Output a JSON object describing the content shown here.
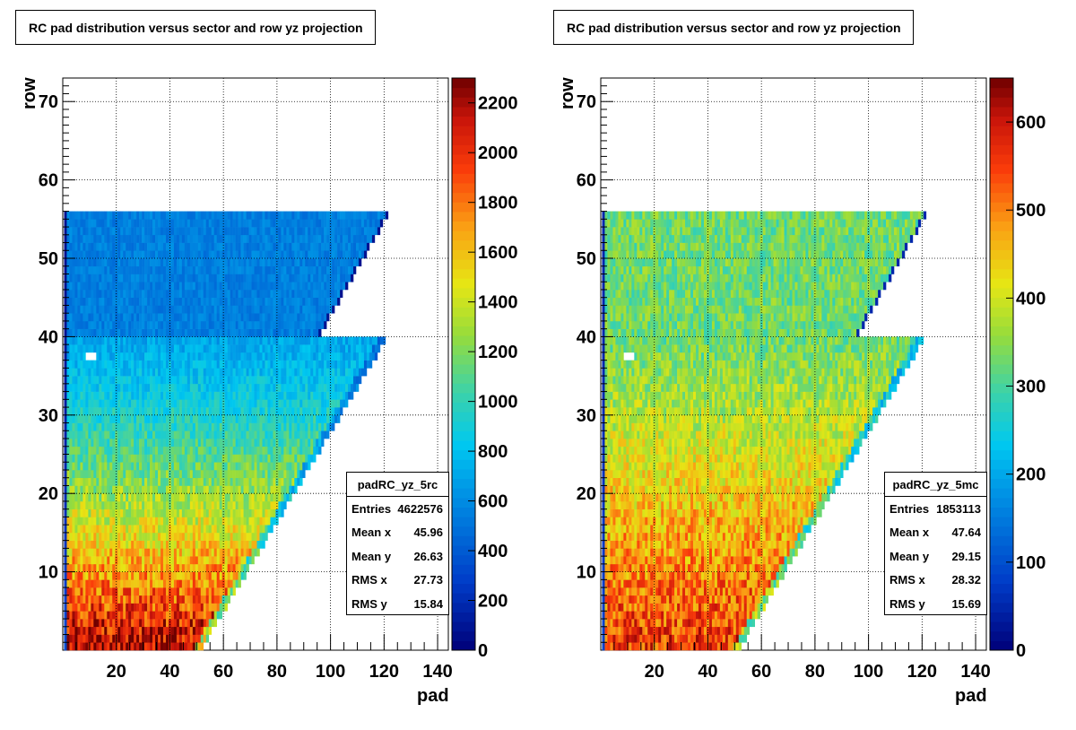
{
  "panels": [
    {
      "title": "RC pad distribution versus sector and row yz projection",
      "stats": {
        "name": "padRC_yz_5rc",
        "rows": [
          {
            "label": "Entries",
            "value": "4622576"
          },
          {
            "label": "Mean x",
            "value": "45.96"
          },
          {
            "label": "Mean y",
            "value": "26.63"
          },
          {
            "label": "RMS x",
            "value": "27.73"
          },
          {
            "label": "RMS y",
            "value": "15.84"
          }
        ]
      },
      "xlabel": "pad",
      "ylabel": "row",
      "zmax": 2300,
      "zticks": [
        "0",
        "200",
        "400",
        "600",
        "800",
        "1000",
        "1200",
        "1400",
        "1600",
        "1800",
        "2000",
        "2200"
      ]
    },
    {
      "title": "RC pad distribution versus sector and row yz projection",
      "stats": {
        "name": "padRC_yz_5mc",
        "rows": [
          {
            "label": "Entries",
            "value": "1853113"
          },
          {
            "label": "Mean x",
            "value": "47.64"
          },
          {
            "label": "Mean y",
            "value": "29.15"
          },
          {
            "label": "RMS x",
            "value": "28.32"
          },
          {
            "label": "RMS y",
            "value": "15.69"
          }
        ]
      },
      "xlabel": "pad",
      "ylabel": "row",
      "zmax": 650,
      "zticks": [
        "0",
        "100",
        "200",
        "300",
        "400",
        "500",
        "600"
      ]
    }
  ],
  "chart_data": [
    {
      "type": "heatmap",
      "title": "RC pad distribution versus sector and row yz projection",
      "xlabel": "pad",
      "ylabel": "row",
      "xlim": [
        0,
        144
      ],
      "ylim": [
        0,
        73
      ],
      "xticks": [
        "20",
        "40",
        "60",
        "80",
        "100",
        "120",
        "140"
      ],
      "yticks": [
        "10",
        "20",
        "30",
        "40",
        "50",
        "60",
        "70"
      ],
      "zlim": [
        0,
        2300
      ],
      "grid": true,
      "shape": {
        "inner_rows": [
          1,
          40
        ],
        "outer_rows": [
          41,
          56
        ],
        "inner_pad_max_at_row1": 52,
        "inner_pad_max_at_row40": 120,
        "outer_pad_max_at_row41": 96,
        "outer_pad_max_at_row56": 121
      },
      "intensity": {
        "low_rows_value": 2200,
        "mid_rows_value": 1100,
        "row40_value": 700,
        "outer_value": 550
      }
    },
    {
      "type": "heatmap",
      "title": "RC pad distribution versus sector and row yz projection",
      "xlabel": "pad",
      "ylabel": "row",
      "xlim": [
        0,
        144
      ],
      "ylim": [
        0,
        73
      ],
      "xticks": [
        "20",
        "40",
        "60",
        "80",
        "100",
        "120",
        "140"
      ],
      "yticks": [
        "10",
        "20",
        "30",
        "40",
        "50",
        "60",
        "70"
      ],
      "zlim": [
        0,
        650
      ],
      "grid": true,
      "shape": {
        "inner_rows": [
          1,
          40
        ],
        "outer_rows": [
          41,
          56
        ],
        "inner_pad_max_at_row1": 52,
        "inner_pad_max_at_row40": 120,
        "outer_pad_max_at_row41": 96,
        "outer_pad_max_at_row56": 121
      },
      "intensity": {
        "low_rows_value": 560,
        "mid_rows_value": 430,
        "row40_value": 330,
        "outer_value": 330
      }
    }
  ]
}
